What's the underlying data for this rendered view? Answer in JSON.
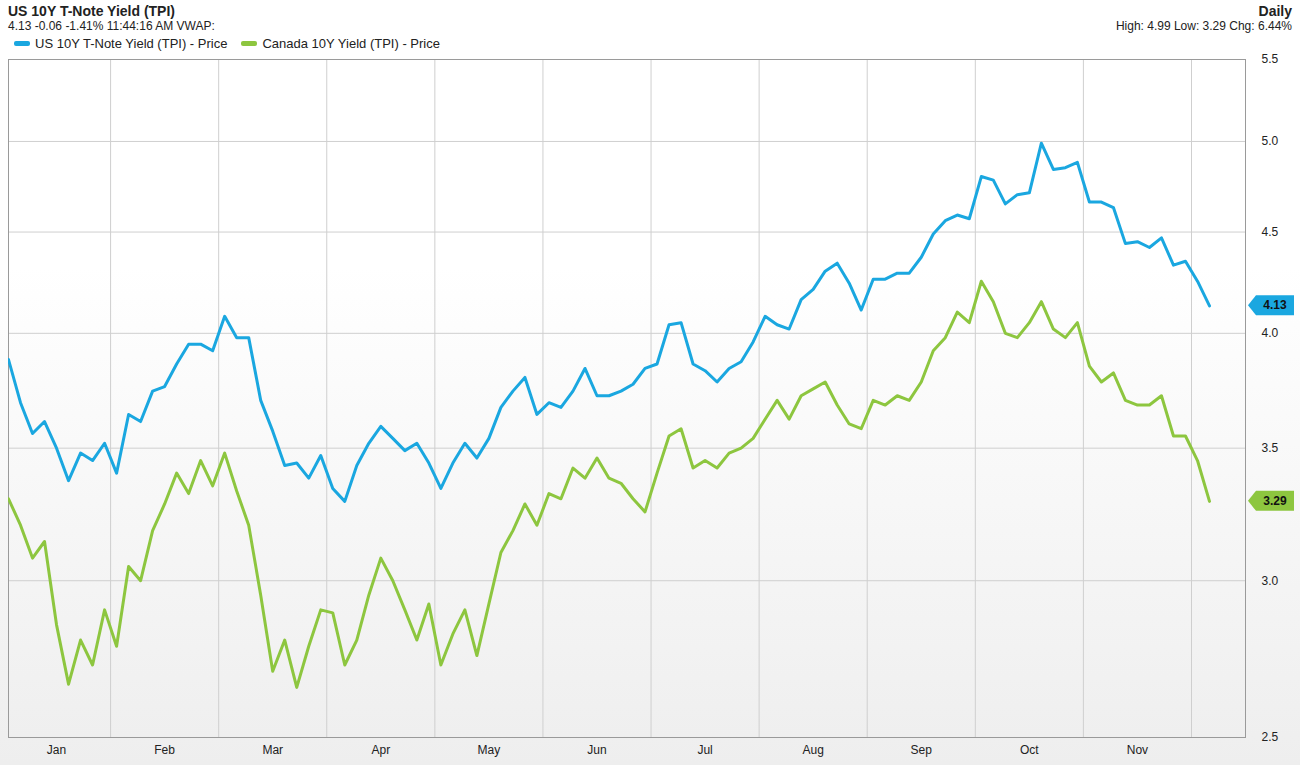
{
  "chart_data": {
    "type": "line",
    "title": "US 10Y T-Note Yield (TPI)",
    "subtitle": "4.13 -0.06 -1.41% 11:44:16 AM VWAP:",
    "annotations": [
      "Daily",
      "High: 4.99 Low: 3.29 Chg: 6.44%"
    ],
    "categories": [
      null,
      null,
      null,
      null,
      "Jan",
      null,
      null,
      null,
      null,
      null,
      null,
      null,
      null,
      "Feb",
      null,
      null,
      null,
      null,
      null,
      null,
      null,
      null,
      "Mar",
      null,
      null,
      null,
      null,
      null,
      null,
      null,
      null,
      "Apr",
      null,
      null,
      null,
      null,
      null,
      null,
      null,
      null,
      "May",
      null,
      null,
      null,
      null,
      null,
      null,
      null,
      null,
      "Jun",
      null,
      null,
      null,
      null,
      null,
      null,
      null,
      null,
      "Jul",
      null,
      null,
      null,
      null,
      null,
      null,
      null,
      null,
      "Aug",
      null,
      null,
      null,
      null,
      null,
      null,
      null,
      null,
      "Sep",
      null,
      null,
      null,
      null,
      null,
      null,
      null,
      null,
      "Oct",
      null,
      null,
      null,
      null,
      null,
      null,
      null,
      null,
      "Nov",
      null,
      null,
      null,
      null,
      null,
      null
    ],
    "series": [
      {
        "name": "US 10Y T-Note Yield (TPI) - Price",
        "color": "#1aa7e0",
        "values": [
          3.88,
          3.69,
          3.56,
          3.61,
          3.5,
          3.37,
          3.48,
          3.45,
          3.52,
          3.4,
          3.64,
          3.61,
          3.74,
          3.76,
          3.86,
          3.95,
          3.95,
          3.92,
          4.08,
          3.98,
          3.98,
          3.7,
          3.57,
          3.43,
          3.44,
          3.38,
          3.47,
          3.34,
          3.29,
          3.43,
          3.52,
          3.59,
          3.54,
          3.49,
          3.52,
          3.44,
          3.34,
          3.44,
          3.52,
          3.46,
          3.54,
          3.67,
          3.74,
          3.8,
          3.64,
          3.69,
          3.67,
          3.74,
          3.84,
          3.72,
          3.72,
          3.74,
          3.77,
          3.84,
          3.86,
          4.04,
          4.05,
          3.86,
          3.83,
          3.78,
          3.84,
          3.87,
          3.96,
          4.08,
          4.04,
          4.02,
          4.16,
          4.21,
          4.3,
          4.34,
          4.24,
          4.11,
          4.26,
          4.26,
          4.29,
          4.29,
          4.37,
          4.49,
          4.56,
          4.59,
          4.57,
          4.8,
          4.78,
          4.65,
          4.7,
          4.71,
          4.99,
          4.84,
          4.85,
          4.88,
          4.66,
          4.66,
          4.63,
          4.44,
          4.45,
          4.42,
          4.47,
          4.33,
          4.35,
          4.25,
          4.13
        ]
      },
      {
        "name": "Canada 10Y Yield (TPI) - Price",
        "color": "#8dc63f",
        "values": [
          3.3,
          3.2,
          3.08,
          3.14,
          2.85,
          2.66,
          2.8,
          2.72,
          2.9,
          2.78,
          3.05,
          3.0,
          3.18,
          3.28,
          3.4,
          3.32,
          3.45,
          3.35,
          3.48,
          3.33,
          3.2,
          2.95,
          2.7,
          2.8,
          2.65,
          2.78,
          2.9,
          2.89,
          2.72,
          2.8,
          2.95,
          3.08,
          3.0,
          2.9,
          2.8,
          2.92,
          2.72,
          2.82,
          2.9,
          2.75,
          2.92,
          3.1,
          3.18,
          3.28,
          3.2,
          3.32,
          3.3,
          3.42,
          3.38,
          3.46,
          3.38,
          3.36,
          3.3,
          3.25,
          3.4,
          3.55,
          3.58,
          3.42,
          3.45,
          3.42,
          3.48,
          3.5,
          3.54,
          3.62,
          3.7,
          3.62,
          3.72,
          3.75,
          3.78,
          3.68,
          3.6,
          3.58,
          3.7,
          3.68,
          3.72,
          3.7,
          3.78,
          3.92,
          3.98,
          4.1,
          4.05,
          4.25,
          4.15,
          4.0,
          3.98,
          4.05,
          4.15,
          4.02,
          3.98,
          4.05,
          3.85,
          3.78,
          3.82,
          3.7,
          3.68,
          3.68,
          3.72,
          3.55,
          3.55,
          3.45,
          3.29
        ]
      }
    ],
    "ylim": [
      2.5,
      5.5
    ],
    "yticks": [
      2.5,
      {
        "value": 3,
        "label": "3.0"
      },
      3.5,
      {
        "value": 4,
        "label": "4.0"
      },
      4.5,
      {
        "value": 5,
        "label": "5.0"
      },
      5.5
    ],
    "log": "y",
    "grid": true,
    "legend": "top-left"
  }
}
